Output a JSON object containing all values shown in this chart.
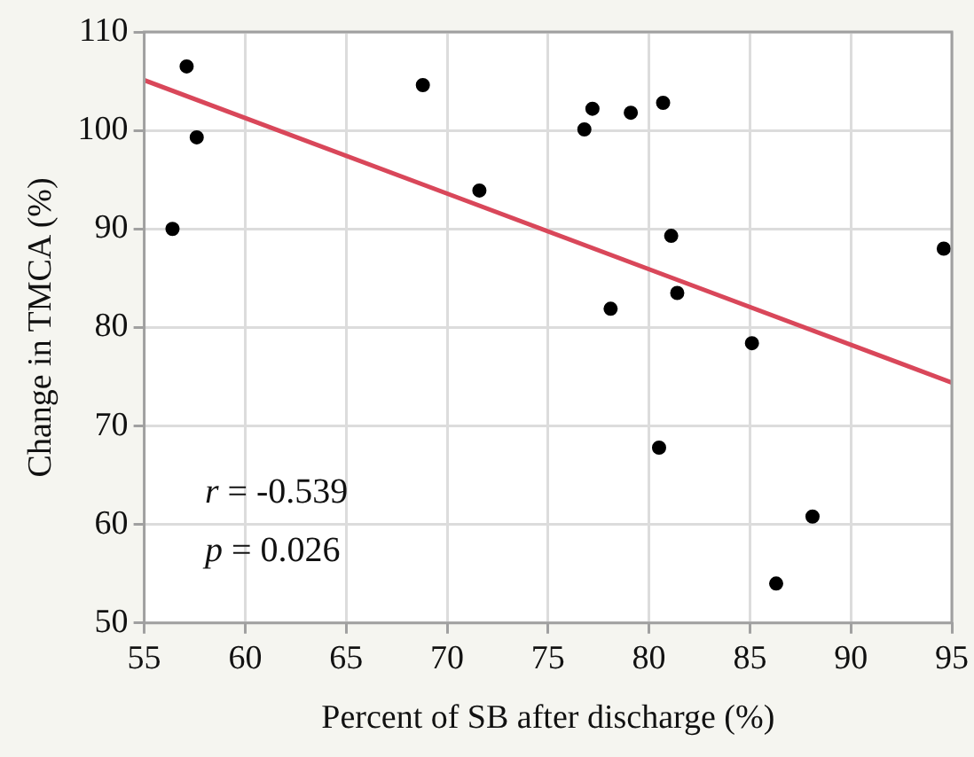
{
  "chart_data": {
    "type": "scatter",
    "xlabel": "Percent of SB after discharge (%)",
    "ylabel": "Change in TMCA (%)",
    "xlim": [
      55,
      95
    ],
    "xticks": [
      55,
      60,
      65,
      70,
      75,
      80,
      85,
      90,
      95
    ],
    "ylim": [
      50,
      110
    ],
    "yticks": [
      50,
      60,
      70,
      80,
      90,
      100,
      110
    ],
    "grid": true,
    "legend": false,
    "series": [
      {
        "marker": "circle",
        "color": "#000000",
        "x": [
          56.4,
          57.1,
          57.6,
          68.8,
          71.6,
          76.8,
          77.2,
          79.1,
          80.7,
          81.1,
          81.4,
          78.1,
          85.1,
          80.5,
          88.1,
          86.3,
          94.6
        ],
        "values": [
          90,
          106.5,
          99.3,
          104.6,
          93.9,
          100.1,
          102.2,
          101.8,
          102.8,
          89.3,
          83.5,
          81.9,
          78.4,
          67.8,
          60.8,
          54,
          88
        ]
      },
      {
        "type": "line",
        "marker": "none",
        "color": "#d9475a",
        "x": [
          55,
          95
        ],
        "values": [
          105.1,
          74.4
        ]
      }
    ],
    "annotations": [
      "r = -0.539",
      "p = 0.026"
    ]
  }
}
